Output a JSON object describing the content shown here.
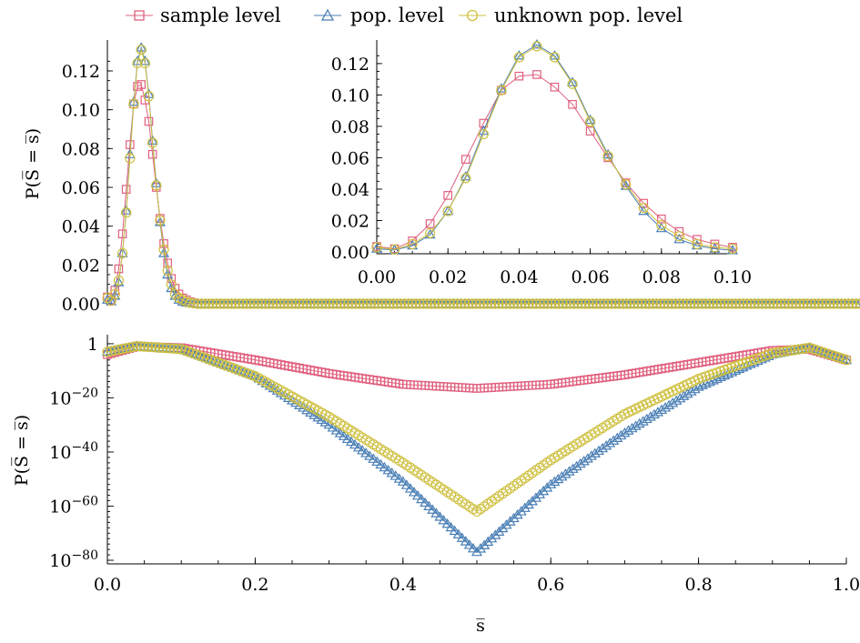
{
  "chart_data": [
    {
      "id": "top-linear",
      "type": "line",
      "xlim": [
        0,
        1
      ],
      "ylim": [
        0,
        0.135
      ],
      "xlabel": "",
      "ylabel": "P(S̅ = s̅)",
      "yticks": [
        "0.00",
        "0.02",
        "0.04",
        "0.06",
        "0.08",
        "0.10",
        "0.12"
      ],
      "legend": {
        "placement": "top",
        "entries": [
          "sample level",
          "pop. level",
          "unknown pop. level"
        ]
      },
      "series": [
        {
          "name": "sample level",
          "color": "#e0607e",
          "marker": "square",
          "x": [
            0.0,
            0.005,
            0.01,
            0.015,
            0.02,
            0.025,
            0.03,
            0.035,
            0.04,
            0.045,
            0.05,
            0.055,
            0.06,
            0.065,
            0.07,
            0.075,
            0.08,
            0.085,
            0.09,
            0.095,
            0.1,
            0.105,
            0.11,
            0.115,
            0.12
          ],
          "y": [
            0.0035,
            0.002,
            0.007,
            0.018,
            0.036,
            0.059,
            0.082,
            0.103,
            0.112,
            0.113,
            0.105,
            0.094,
            0.077,
            0.06,
            0.044,
            0.031,
            0.021,
            0.013,
            0.008,
            0.005,
            0.003,
            0.002,
            0.001,
            0.0005,
            0.0002
          ]
        },
        {
          "name": "pop. level",
          "color": "#4a7fb5",
          "marker": "triangle",
          "x": [
            0.0,
            0.005,
            0.01,
            0.015,
            0.02,
            0.025,
            0.03,
            0.035,
            0.04,
            0.045,
            0.05,
            0.055,
            0.06,
            0.065,
            0.07,
            0.075,
            0.08,
            0.085,
            0.09,
            0.095,
            0.1,
            0.105,
            0.11,
            0.115,
            0.12
          ],
          "y": [
            0.002,
            0.0012,
            0.004,
            0.011,
            0.026,
            0.048,
            0.077,
            0.104,
            0.125,
            0.132,
            0.125,
            0.108,
            0.084,
            0.062,
            0.042,
            0.026,
            0.015,
            0.008,
            0.004,
            0.002,
            0.001,
            0.0005,
            0.0002,
            0.0001,
            0.0
          ]
        },
        {
          "name": "unknown pop. level",
          "color": "#cfc040",
          "marker": "circle",
          "x": [
            0.0,
            0.005,
            0.01,
            0.015,
            0.02,
            0.025,
            0.03,
            0.035,
            0.04,
            0.045,
            0.05,
            0.055,
            0.06,
            0.065,
            0.07,
            0.075,
            0.08,
            0.085,
            0.09,
            0.095,
            0.1,
            0.105,
            0.11,
            0.115,
            0.12
          ],
          "y": [
            0.003,
            0.0015,
            0.005,
            0.012,
            0.026,
            0.047,
            0.075,
            0.103,
            0.124,
            0.131,
            0.124,
            0.107,
            0.083,
            0.061,
            0.043,
            0.028,
            0.017,
            0.01,
            0.005,
            0.003,
            0.002,
            0.001,
            0.0005,
            0.0002,
            0.0001
          ]
        }
      ]
    },
    {
      "id": "inset",
      "type": "line",
      "xlim": [
        0,
        0.1
      ],
      "ylim": [
        0,
        0.135
      ],
      "xticks": [
        "0.00",
        "0.02",
        "0.04",
        "0.06",
        "0.08",
        "0.10"
      ],
      "yticks": [
        "0.00",
        "0.02",
        "0.04",
        "0.06",
        "0.08",
        "0.10",
        "0.12"
      ],
      "series": [
        {
          "name": "sample level",
          "color": "#e0607e",
          "marker": "square",
          "x": [
            0.0,
            0.005,
            0.01,
            0.015,
            0.02,
            0.025,
            0.03,
            0.035,
            0.04,
            0.045,
            0.05,
            0.055,
            0.06,
            0.065,
            0.07,
            0.075,
            0.08,
            0.085,
            0.09,
            0.095,
            0.1
          ],
          "y": [
            0.0035,
            0.002,
            0.007,
            0.018,
            0.036,
            0.059,
            0.082,
            0.103,
            0.112,
            0.113,
            0.105,
            0.094,
            0.077,
            0.06,
            0.044,
            0.031,
            0.021,
            0.013,
            0.008,
            0.005,
            0.003
          ]
        },
        {
          "name": "pop. level",
          "color": "#4a7fb5",
          "marker": "triangle",
          "x": [
            0.0,
            0.005,
            0.01,
            0.015,
            0.02,
            0.025,
            0.03,
            0.035,
            0.04,
            0.045,
            0.05,
            0.055,
            0.06,
            0.065,
            0.07,
            0.075,
            0.08,
            0.085,
            0.09,
            0.095,
            0.1
          ],
          "y": [
            0.002,
            0.0012,
            0.004,
            0.011,
            0.026,
            0.048,
            0.077,
            0.104,
            0.125,
            0.132,
            0.125,
            0.108,
            0.084,
            0.062,
            0.042,
            0.026,
            0.015,
            0.008,
            0.004,
            0.002,
            0.001
          ]
        },
        {
          "name": "unknown pop. level",
          "color": "#cfc040",
          "marker": "circle",
          "x": [
            0.0,
            0.005,
            0.01,
            0.015,
            0.02,
            0.025,
            0.03,
            0.035,
            0.04,
            0.045,
            0.05,
            0.055,
            0.06,
            0.065,
            0.07,
            0.075,
            0.08,
            0.085,
            0.09,
            0.095,
            0.1
          ],
          "y": [
            0.003,
            0.0015,
            0.005,
            0.012,
            0.026,
            0.047,
            0.075,
            0.103,
            0.124,
            0.131,
            0.124,
            0.107,
            0.083,
            0.061,
            0.043,
            0.028,
            0.017,
            0.01,
            0.005,
            0.003,
            0.002
          ]
        }
      ]
    },
    {
      "id": "bottom-log",
      "type": "line",
      "scale_y": "log10",
      "xlim": [
        0,
        1
      ],
      "ylim_log10": [
        -81,
        3
      ],
      "xlabel": "s̅",
      "ylabel": "P(S̅ = s̅)",
      "xticks": [
        "0.0",
        "0.2",
        "0.4",
        "0.6",
        "0.8",
        "1.0"
      ],
      "yticks": [
        {
          "base": "1",
          "exp": ""
        },
        {
          "base": "10",
          "exp": "−20"
        },
        {
          "base": "10",
          "exp": "−40"
        },
        {
          "base": "10",
          "exp": "−60"
        },
        {
          "base": "10",
          "exp": "−80"
        }
      ],
      "series": [
        {
          "name": "sample level",
          "color": "#e0607e",
          "marker": "square",
          "x": [
            0.0,
            0.04,
            0.1,
            0.2,
            0.3,
            0.4,
            0.5,
            0.6,
            0.7,
            0.8,
            0.9,
            0.95,
            1.0
          ],
          "log10": [
            -4,
            -1,
            -1.5,
            -6,
            -11,
            -15,
            -16.5,
            -15,
            -11.5,
            -7,
            -2.5,
            -2,
            -6
          ]
        },
        {
          "name": "pop. level",
          "color": "#4a7fb5",
          "marker": "triangle",
          "x": [
            0.0,
            0.04,
            0.1,
            0.2,
            0.3,
            0.4,
            0.5,
            0.6,
            0.7,
            0.8,
            0.9,
            0.95,
            1.0
          ],
          "log10": [
            -3,
            -0.9,
            -2,
            -12,
            -30,
            -51,
            -77,
            -52,
            -33,
            -16,
            -4,
            -1.5,
            -6
          ]
        },
        {
          "name": "unknown pop. level",
          "color": "#cfc040",
          "marker": "circle",
          "x": [
            0.0,
            0.04,
            0.1,
            0.2,
            0.3,
            0.4,
            0.5,
            0.6,
            0.7,
            0.8,
            0.9,
            0.95,
            1.0
          ],
          "log10": [
            -3,
            -0.9,
            -2,
            -12,
            -27,
            -44,
            -62,
            -43,
            -26,
            -13,
            -3.5,
            -1.5,
            -6
          ]
        }
      ]
    }
  ]
}
